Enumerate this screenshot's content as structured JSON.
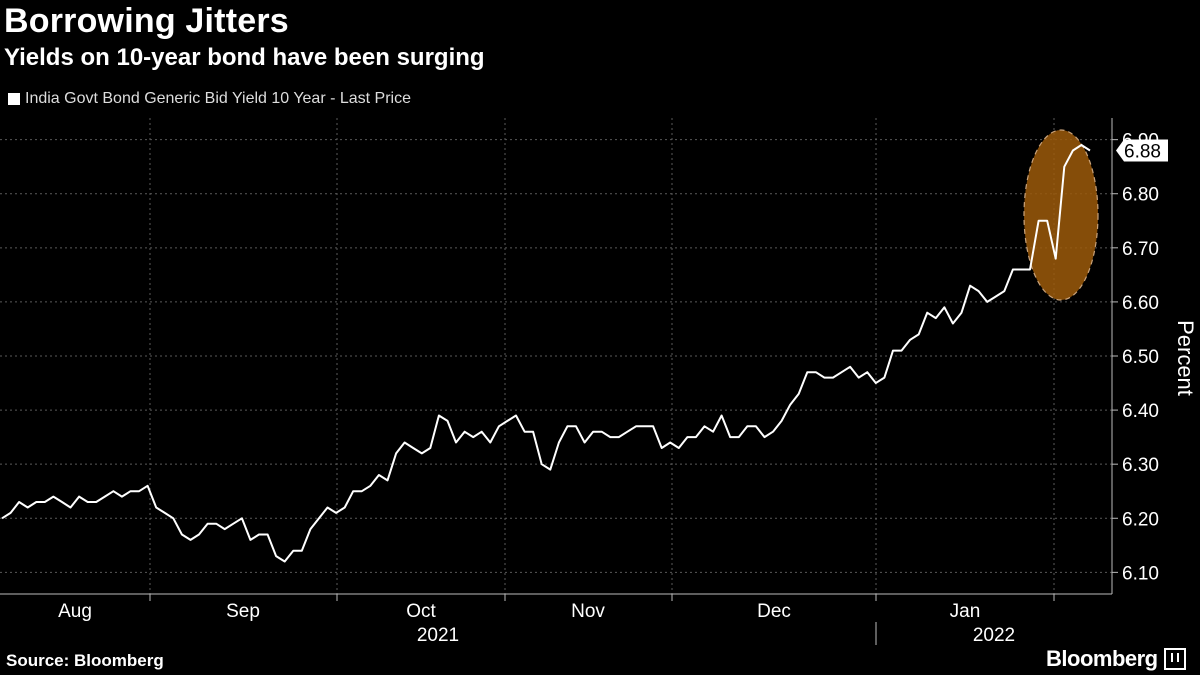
{
  "chart_data": {
    "type": "line",
    "title": "Borrowing Jitters",
    "subtitle": "Yields on 10-year bond have been surging",
    "legend": "India Govt Bond Generic Bid Yield 10 Year - Last Price",
    "ylabel": "Percent",
    "ylim": [
      6.06,
      6.94
    ],
    "yticks": [
      6.1,
      6.2,
      6.3,
      6.4,
      6.5,
      6.6,
      6.7,
      6.8,
      6.9
    ],
    "ytick_labels": [
      "6.10",
      "6.20",
      "6.30",
      "6.40",
      "6.50",
      "6.60",
      "6.70",
      "6.80",
      "6.90"
    ],
    "last_value_label": "6.88",
    "month_labels": [
      "Aug",
      "Sep",
      "Oct",
      "Nov",
      "Dec",
      "Jan"
    ],
    "year_labels": [
      "2021",
      "2022"
    ],
    "series": [
      {
        "values": [
          6.2,
          6.21,
          6.23,
          6.22,
          6.23,
          6.23,
          6.24,
          6.23,
          6.22,
          6.24,
          6.23,
          6.23,
          6.24,
          6.25,
          6.24,
          6.25,
          6.25,
          6.26,
          6.22,
          6.21,
          6.2,
          6.17,
          6.16,
          6.17,
          6.19,
          6.19,
          6.18,
          6.19,
          6.2,
          6.16,
          6.17,
          6.17,
          6.13,
          6.12,
          6.14,
          6.14,
          6.18,
          6.2,
          6.22,
          6.21,
          6.22,
          6.25,
          6.25,
          6.26,
          6.28,
          6.27,
          6.32,
          6.34,
          6.33,
          6.32,
          6.33,
          6.39,
          6.38,
          6.34,
          6.36,
          6.35,
          6.36,
          6.34,
          6.37,
          6.38,
          6.39,
          6.36,
          6.36,
          6.3,
          6.29,
          6.34,
          6.37,
          6.37,
          6.34,
          6.36,
          6.36,
          6.35,
          6.35,
          6.36,
          6.37,
          6.37,
          6.37,
          6.33,
          6.34,
          6.33,
          6.35,
          6.35,
          6.37,
          6.36,
          6.39,
          6.35,
          6.35,
          6.37,
          6.37,
          6.35,
          6.36,
          6.38,
          6.41,
          6.43,
          6.47,
          6.47,
          6.46,
          6.46,
          6.47,
          6.48,
          6.46,
          6.47,
          6.45,
          6.46,
          6.51,
          6.51,
          6.53,
          6.54,
          6.58,
          6.57,
          6.59,
          6.56,
          6.58,
          6.63,
          6.62,
          6.6,
          6.61,
          6.62,
          6.66,
          6.66,
          6.66,
          6.75,
          6.75,
          6.68,
          6.85,
          6.88,
          6.89,
          6.88
        ]
      }
    ],
    "annotation": "highlight-ellipse-recent-surge"
  },
  "source": "Source: Bloomberg",
  "brand": "Bloomberg",
  "colors": {
    "background": "#000000",
    "line": "#ffffff",
    "grid": "#5a5a5a",
    "highlight": "#9c5a0a"
  }
}
